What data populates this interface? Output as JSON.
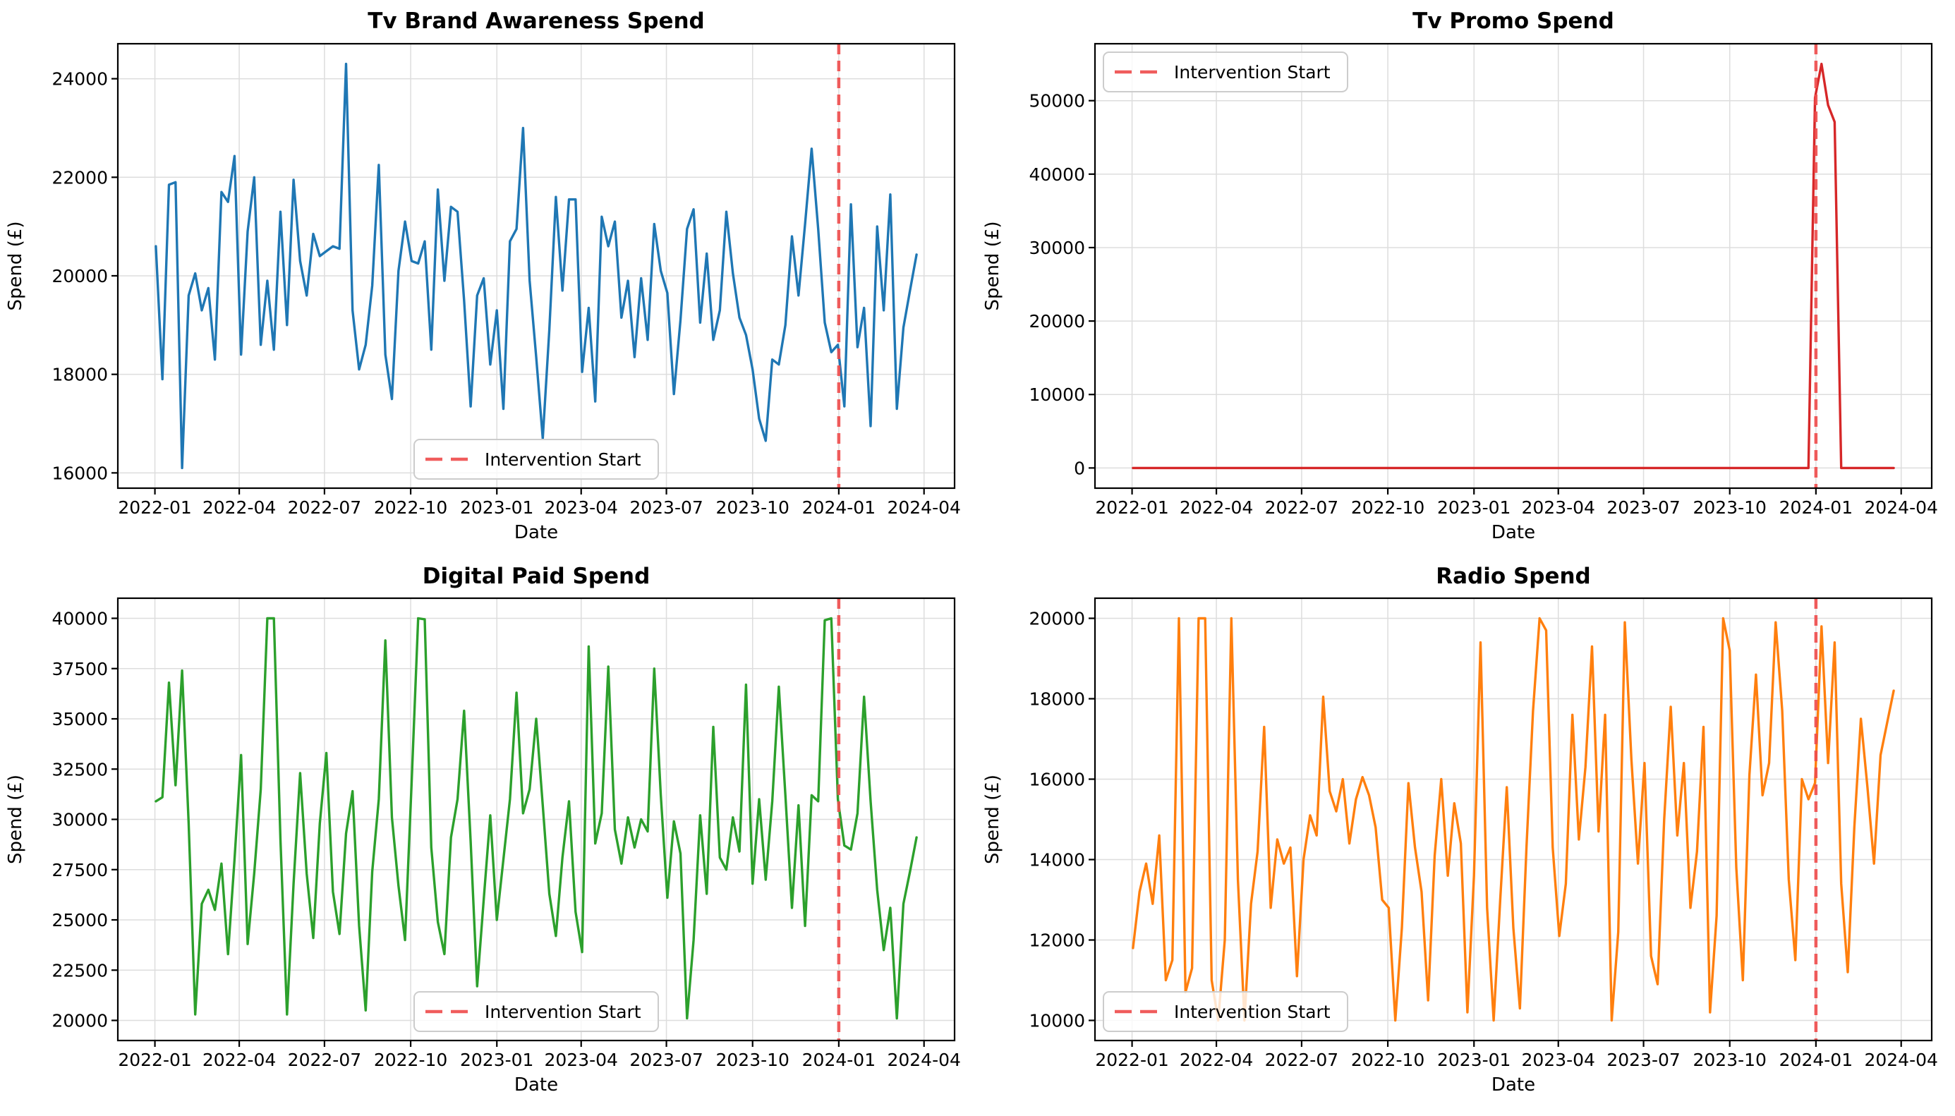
{
  "figure": {
    "background": "#ffffff",
    "xlabel": "Date",
    "ylabel": "Spend (£)"
  },
  "intervention": {
    "label": "Intervention Start",
    "date": "2024-01-01",
    "color": "#ef4b4b"
  },
  "x_axis": {
    "start_date": "2022-01-02",
    "step_days": 7,
    "tick_labels": [
      "2022-01",
      "2022-04",
      "2022-07",
      "2022-10",
      "2023-01",
      "2023-04",
      "2023-07",
      "2023-10",
      "2024-01",
      "2024-04"
    ]
  },
  "style_colors": {
    "grid": "#dddddd",
    "spine": "#000000",
    "tick_text": "#000000",
    "legend_border": "#cccccc"
  },
  "chart_data": [
    {
      "type": "line",
      "title": "Tv Brand Awareness Spend",
      "xlabel": "Date",
      "ylabel": "Spend (£)",
      "color": "#1f77b4",
      "legend_loc": "lower center",
      "ylim": [
        15690,
        24710
      ],
      "y_ticks": [
        16000,
        18000,
        20000,
        22000,
        24000
      ],
      "x_start": "2022-01-02",
      "x_step_days": 7,
      "values": [
        20600,
        17900,
        21850,
        21900,
        16100,
        19600,
        20050,
        19300,
        19750,
        18300,
        21700,
        21500,
        22430,
        18400,
        20900,
        22000,
        18600,
        19900,
        18500,
        21300,
        19000,
        21950,
        20300,
        19600,
        20850,
        20400,
        20500,
        20600,
        20550,
        24300,
        19300,
        18100,
        18600,
        19800,
        22250,
        18400,
        17500,
        20100,
        21100,
        20300,
        20250,
        20700,
        18500,
        21750,
        19900,
        21400,
        21300,
        19500,
        17350,
        19600,
        19950,
        18200,
        19300,
        17300,
        20700,
        20950,
        23000,
        19900,
        18350,
        16700,
        18900,
        21600,
        19700,
        21550,
        21550,
        18050,
        19350,
        17450,
        21200,
        20600,
        21100,
        19150,
        19900,
        18350,
        19950,
        18700,
        21050,
        20100,
        19650,
        17600,
        19100,
        20950,
        21350,
        19050,
        20450,
        18700,
        19300,
        21300,
        20050,
        19150,
        18800,
        18100,
        17100,
        16650,
        18300,
        18200,
        19000,
        20800,
        19600,
        21050,
        22580,
        20950,
        19050,
        18450,
        18600,
        17350,
        21450,
        18550,
        19350,
        16950,
        21000,
        19300,
        21650,
        17300,
        18950,
        19700,
        20430
      ]
    },
    {
      "type": "line",
      "title": "Tv Promo Spend",
      "xlabel": "Date",
      "ylabel": "Spend (£)",
      "color": "#d62728",
      "legend_loc": "upper left",
      "ylim": [
        -2750,
        57750
      ],
      "y_ticks": [
        0,
        10000,
        20000,
        30000,
        40000,
        50000
      ],
      "x_start": "2022-01-02",
      "x_step_days": 7,
      "values": [
        0,
        0,
        0,
        0,
        0,
        0,
        0,
        0,
        0,
        0,
        0,
        0,
        0,
        0,
        0,
        0,
        0,
        0,
        0,
        0,
        0,
        0,
        0,
        0,
        0,
        0,
        0,
        0,
        0,
        0,
        0,
        0,
        0,
        0,
        0,
        0,
        0,
        0,
        0,
        0,
        0,
        0,
        0,
        0,
        0,
        0,
        0,
        0,
        0,
        0,
        0,
        0,
        0,
        0,
        0,
        0,
        0,
        0,
        0,
        0,
        0,
        0,
        0,
        0,
        0,
        0,
        0,
        0,
        0,
        0,
        0,
        0,
        0,
        0,
        0,
        0,
        0,
        0,
        0,
        0,
        0,
        0,
        0,
        0,
        0,
        0,
        0,
        0,
        0,
        0,
        0,
        0,
        0,
        0,
        0,
        0,
        0,
        0,
        0,
        0,
        0,
        0,
        0,
        0,
        50400,
        55000,
        49400,
        47100,
        0,
        0,
        0,
        0,
        0,
        0,
        0,
        0,
        0
      ]
    },
    {
      "type": "line",
      "title": "Digital Paid Spend",
      "xlabel": "Date",
      "ylabel": "Spend (£)",
      "color": "#2ca02c",
      "legend_loc": "lower center",
      "ylim": [
        19000,
        41000
      ],
      "y_ticks": [
        20000,
        22500,
        25000,
        27500,
        30000,
        32500,
        35000,
        37500,
        40000
      ],
      "x_start": "2022-01-02",
      "x_step_days": 7,
      "values": [
        30900,
        31100,
        36800,
        31700,
        37400,
        29800,
        20300,
        25800,
        26500,
        25500,
        27800,
        23300,
        28000,
        33200,
        23800,
        27300,
        31500,
        40000,
        40000,
        29000,
        20300,
        26800,
        32300,
        27300,
        24100,
        29800,
        33300,
        26400,
        24300,
        29300,
        31400,
        24700,
        20500,
        27400,
        31000,
        38900,
        30100,
        26700,
        24000,
        31800,
        40000,
        39950,
        28600,
        24900,
        23300,
        29100,
        31000,
        35400,
        28900,
        21700,
        26000,
        30200,
        25000,
        28000,
        31000,
        36300,
        30300,
        31500,
        35000,
        30700,
        26300,
        24200,
        28100,
        30900,
        25400,
        23400,
        38600,
        28800,
        30300,
        37600,
        29500,
        27800,
        30100,
        28600,
        30000,
        29400,
        37500,
        31200,
        26100,
        29900,
        28300,
        20100,
        24000,
        30200,
        26300,
        34600,
        28100,
        27500,
        30100,
        28400,
        36700,
        26800,
        31000,
        27000,
        30900,
        36600,
        31200,
        25600,
        30700,
        24700,
        31200,
        30900,
        39900,
        40000,
        31000,
        28700,
        28500,
        30300,
        36100,
        30900,
        26500,
        23500,
        25600,
        20100,
        25800,
        27400,
        29100
      ]
    },
    {
      "type": "line",
      "title": "Radio Spend",
      "xlabel": "Date",
      "ylabel": "Spend (£)",
      "color": "#ff7f0e",
      "legend_loc": "lower left",
      "ylim": [
        9500,
        20500
      ],
      "y_ticks": [
        10000,
        12000,
        14000,
        16000,
        18000,
        20000
      ],
      "x_start": "2022-01-02",
      "x_step_days": 7,
      "values": [
        11800,
        13200,
        13900,
        12900,
        14600,
        11000,
        11500,
        20000,
        10700,
        11300,
        20000,
        20000,
        11000,
        10000,
        12000,
        20000,
        13500,
        10000,
        12900,
        14200,
        17300,
        12800,
        14500,
        13900,
        14300,
        11100,
        14000,
        15100,
        14600,
        18050,
        15700,
        15200,
        16000,
        14400,
        15500,
        16050,
        15600,
        14800,
        13000,
        12800,
        10000,
        12300,
        15900,
        14300,
        13200,
        10500,
        14100,
        16000,
        13600,
        15400,
        14400,
        10200,
        13600,
        19400,
        12800,
        10000,
        13000,
        15800,
        12300,
        10300,
        14300,
        17700,
        20000,
        19700,
        14300,
        12100,
        13400,
        17600,
        14500,
        16300,
        19300,
        14700,
        17600,
        10000,
        12200,
        19900,
        16500,
        13900,
        16400,
        11600,
        10900,
        15000,
        17800,
        14600,
        16400,
        12800,
        14200,
        17300,
        10200,
        12600,
        20000,
        19200,
        13800,
        11000,
        16100,
        18600,
        15600,
        16400,
        19900,
        17700,
        13500,
        11500,
        16000,
        15500,
        15900,
        19800,
        16400,
        19400,
        13400,
        11200,
        14800,
        17500,
        15800,
        13900,
        16600,
        17400,
        18200
      ]
    }
  ]
}
